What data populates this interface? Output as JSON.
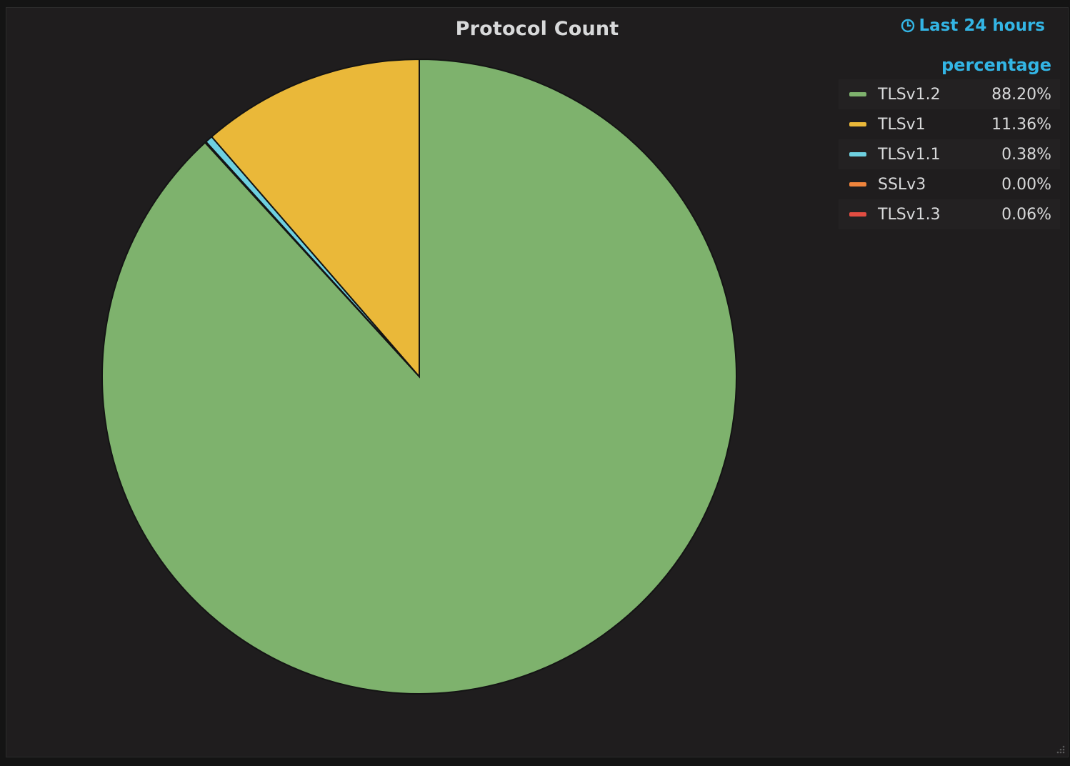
{
  "panel": {
    "title": "Protocol Count",
    "time_range_label": "Last 24 hours",
    "time_range_icon": "clock-icon",
    "accent_color": "#33b5e5",
    "background": "#1f1d1e"
  },
  "chart_data": {
    "type": "pie",
    "title": "Protocol Count",
    "legend_header": "percentage",
    "legend_placement": "top-right",
    "categories": [
      "TLSv1.2",
      "TLSv1",
      "TLSv1.1",
      "SSLv3",
      "TLSv1.3"
    ],
    "values": [
      88.2,
      11.36,
      0.38,
      0.0,
      0.06
    ],
    "value_labels": [
      "88.20%",
      "11.36%",
      "0.38%",
      "0.00%",
      "0.06%"
    ],
    "colors": [
      "#7eb26d",
      "#eab839",
      "#6ed0e0",
      "#ef843c",
      "#e24d42"
    ],
    "slice_order": [
      "TLSv1.2",
      "TLSv1.3",
      "SSLv3",
      "TLSv1.1",
      "TLSv1"
    ]
  }
}
